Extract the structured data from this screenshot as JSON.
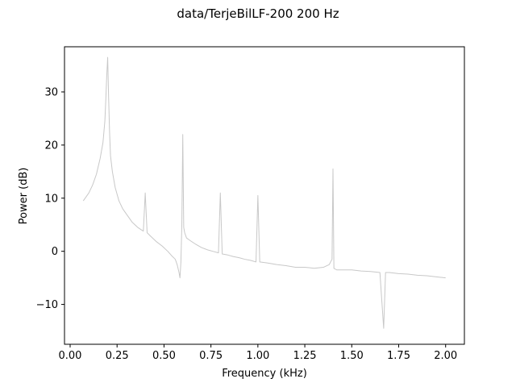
{
  "chart_data": {
    "type": "line",
    "title": "data/TerjeBilLF-200   200 Hz",
    "xlabel": "Frequency (kHz)",
    "ylabel": "Power (dB)",
    "xlim": [
      -0.03,
      2.1
    ],
    "ylim": [
      -17.5,
      38.5
    ],
    "xticks": [
      0.0,
      0.25,
      0.5,
      0.75,
      1.0,
      1.25,
      1.5,
      1.75,
      2.0
    ],
    "xtick_labels": [
      "0.00",
      "0.25",
      "0.50",
      "0.75",
      "1.00",
      "1.25",
      "1.50",
      "1.75",
      "2.00"
    ],
    "yticks": [
      -10,
      0,
      10,
      20,
      30
    ],
    "ytick_labels": [
      "−10",
      "0",
      "10",
      "20",
      "30"
    ],
    "grid": false,
    "line_color": "#c8c8c8",
    "series": [
      {
        "x": [
          0.07,
          0.08,
          0.1,
          0.12,
          0.14,
          0.16,
          0.175,
          0.185,
          0.19,
          0.195,
          0.2,
          0.205,
          0.21,
          0.215,
          0.225,
          0.24,
          0.26,
          0.28,
          0.3,
          0.33,
          0.36,
          0.39,
          0.4,
          0.41,
          0.43,
          0.46,
          0.49,
          0.52,
          0.54,
          0.56,
          0.57,
          0.58,
          0.585,
          0.59,
          0.595,
          0.6,
          0.605,
          0.61,
          0.62,
          0.64,
          0.67,
          0.7,
          0.73,
          0.76,
          0.79,
          0.8,
          0.81,
          0.84,
          0.87,
          0.9,
          0.93,
          0.96,
          0.99,
          1.0,
          1.01,
          1.05,
          1.1,
          1.15,
          1.2,
          1.25,
          1.3,
          1.35,
          1.38,
          1.395,
          1.4,
          1.405,
          1.42,
          1.45,
          1.5,
          1.55,
          1.6,
          1.65,
          1.67,
          1.68,
          1.7,
          1.75,
          1.8,
          1.85,
          1.9,
          1.95,
          2.0
        ],
        "y": [
          9.5,
          10.0,
          11.0,
          12.5,
          14.5,
          17.5,
          20.5,
          24.5,
          28.5,
          33.0,
          36.5,
          29.0,
          22.5,
          18.0,
          15.0,
          12.0,
          9.5,
          8.0,
          7.0,
          5.5,
          4.5,
          3.8,
          11.0,
          3.5,
          2.8,
          1.8,
          1.0,
          0.0,
          -0.8,
          -1.5,
          -2.5,
          -4.0,
          -5.0,
          -2.0,
          5.0,
          22.0,
          4.5,
          3.5,
          2.5,
          2.0,
          1.3,
          0.7,
          0.3,
          0.0,
          -0.3,
          11.0,
          -0.5,
          -0.7,
          -1.0,
          -1.2,
          -1.5,
          -1.7,
          -2.0,
          10.5,
          -2.0,
          -2.2,
          -2.5,
          -2.7,
          -3.0,
          -3.0,
          -3.2,
          -3.0,
          -2.5,
          -1.5,
          15.5,
          -3.2,
          -3.5,
          -3.5,
          -3.5,
          -3.7,
          -3.8,
          -4.0,
          -14.5,
          -4.0,
          -4.0,
          -4.2,
          -4.3,
          -4.5,
          -4.6,
          -4.8,
          -5.0
        ]
      }
    ]
  }
}
